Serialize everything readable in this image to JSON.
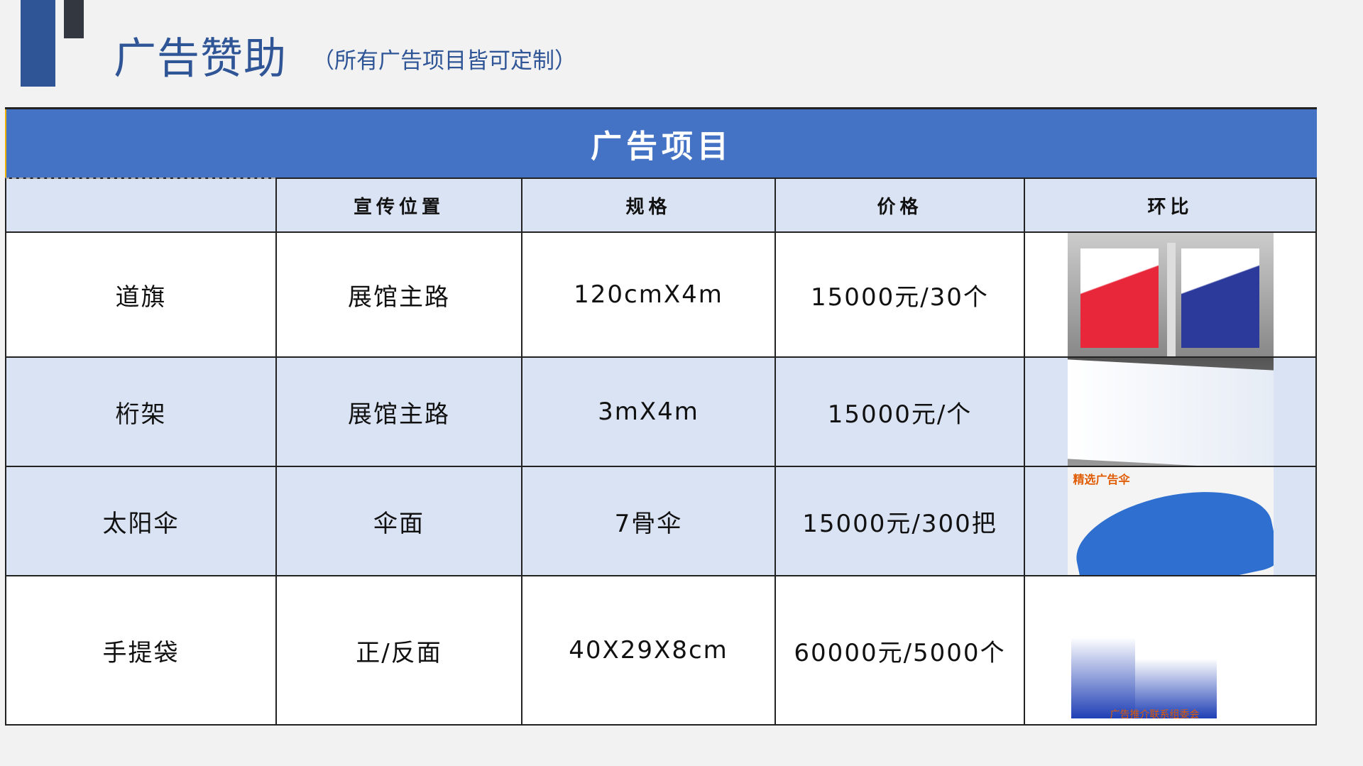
{
  "header": {
    "title": "广告赞助",
    "subtitle": "（所有广告项目皆可定制）"
  },
  "table": {
    "band_title": "广告项目",
    "columns": [
      "",
      "宣传位置",
      "规格",
      "价格",
      "环比"
    ],
    "rows": [
      {
        "name": "道旗",
        "position": "展馆主路",
        "spec": "120cmX4m",
        "price": "15000元/30个",
        "image": "flag-banner-image"
      },
      {
        "name": "桁架",
        "position": "展馆主路",
        "spec": "3mX4m",
        "price": "15000元/个",
        "image": "truss-billboard-image"
      },
      {
        "name": "太阳伞",
        "position": "伞面",
        "spec": "7骨伞",
        "price": "15000元/300把",
        "image": "umbrella-image",
        "image_caption": "精选广告伞"
      },
      {
        "name": "手提袋",
        "position": "正/反面",
        "spec": "40X29X8cm",
        "price": "60000元/5000个",
        "image": "tote-bag-image",
        "image_caption": "广告推介联系组委会"
      }
    ]
  },
  "colors": {
    "accent": "#4472c4",
    "header_row": "#dae3f3",
    "title": "#2f5597"
  }
}
